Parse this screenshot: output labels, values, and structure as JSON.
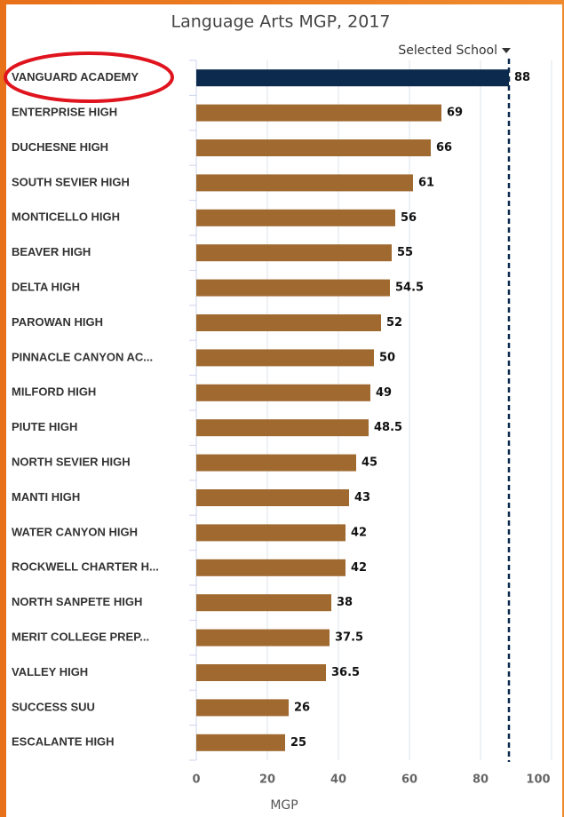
{
  "chart_data": {
    "type": "barh",
    "title": "Language Arts MGP, 2017",
    "legend": "Selected School",
    "x_label": "MGP",
    "categories": [
      "VANGUARD ACADEMY",
      "ENTERPRISE HIGH",
      "DUCHESNE HIGH",
      "SOUTH SEVIER HIGH",
      "MONTICELLO HIGH",
      "BEAVER HIGH",
      "DELTA HIGH",
      "PAROWAN HIGH",
      "PINNACLE CANYON AC...",
      "MILFORD HIGH",
      "PIUTE HIGH",
      "NORTH SEVIER HIGH",
      "MANTI HIGH",
      "WATER CANYON HIGH",
      "ROCKWELL CHARTER H...",
      "NORTH SANPETE HIGH",
      "MERIT COLLEGE PREP...",
      "VALLEY HIGH",
      "SUCCESS SUU",
      "ESCALANTE HIGH"
    ],
    "values": [
      88,
      69,
      66,
      61,
      56,
      55,
      54.5,
      52,
      50,
      49,
      48.5,
      45,
      43,
      42,
      42,
      38,
      37.5,
      36.5,
      26,
      25
    ],
    "colors": [
      "#0b2a4d",
      "#a0692f",
      "#a0692f",
      "#a0692f",
      "#a0692f",
      "#a0692f",
      "#a0692f",
      "#a0692f",
      "#a0692f",
      "#a0692f",
      "#a0692f",
      "#a0692f",
      "#a0692f",
      "#a0692f",
      "#a0692f",
      "#a0692f",
      "#a0692f",
      "#a0692f",
      "#a0692f",
      "#a0692f"
    ],
    "reference_line": 88,
    "xlim": [
      0,
      100
    ],
    "xticks": [
      0,
      20,
      40,
      60,
      80,
      100
    ],
    "grid": true
  }
}
